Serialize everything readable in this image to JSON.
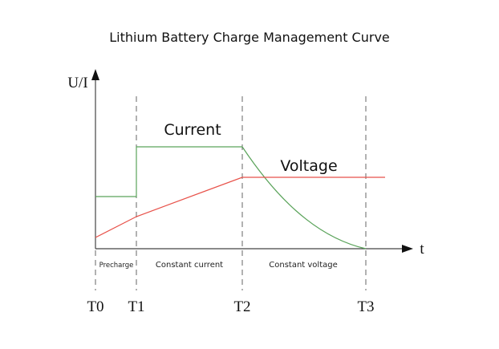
{
  "title": "Lithium Battery Charge Management Curve",
  "axes": {
    "y_label": "U/I",
    "x_label": "t"
  },
  "curves": [
    {
      "label": "Current"
    },
    {
      "label": "Voltage"
    }
  ],
  "phases": [
    "Precharge",
    "Constant current",
    "Constant voltage"
  ],
  "time_markers": [
    "T0",
    "T1",
    "T2",
    "T3"
  ]
}
